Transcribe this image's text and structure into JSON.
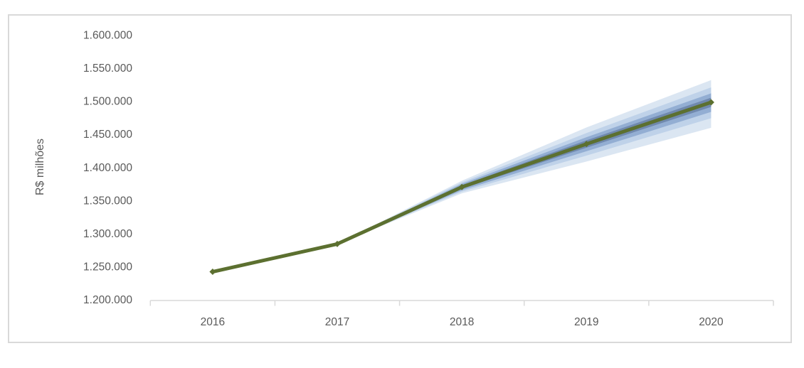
{
  "page": {
    "background_color": "#ffffff",
    "frame_border_color": "#d9d9d9"
  },
  "chart_data": {
    "type": "line",
    "subtype": "fan-projection",
    "title": "",
    "xlabel": "",
    "ylabel": "R$ milhões",
    "categories": [
      "2016",
      "2017",
      "2018",
      "2019",
      "2020"
    ],
    "series": [
      {
        "name": "projecao-central",
        "color": "#5c7030",
        "marker": "diamond",
        "values": [
          1242000,
          1284000,
          1370000,
          1435000,
          1498000
        ]
      }
    ],
    "fan_bands": [
      {
        "name": "band-outer",
        "color": "#dbe6f2",
        "offsets_upper": [
          null,
          0,
          9500,
          25000,
          33500
        ],
        "offsets_lower": [
          null,
          0,
          9500,
          26500,
          38500
        ]
      },
      {
        "name": "band-mid-outer",
        "color": "#bfd2e9",
        "offsets_upper": [
          null,
          0,
          7000,
          16500,
          22500
        ],
        "offsets_lower": [
          null,
          0,
          7000,
          17500,
          24000
        ]
      },
      {
        "name": "band-mid-inner",
        "color": "#93aed3",
        "offsets_upper": [
          null,
          0,
          4800,
          10200,
          13500
        ],
        "offsets_lower": [
          null,
          0,
          4800,
          11000,
          14500
        ]
      },
      {
        "name": "band-inner",
        "color": "#7089ae",
        "offsets_upper": [
          null,
          0,
          2500,
          5600,
          7000
        ],
        "offsets_lower": [
          null,
          0,
          2500,
          5600,
          7000
        ]
      }
    ],
    "ylim": [
      1200000,
      1600000
    ],
    "ytick_step": 50000,
    "ytick_labels": [
      "1.200.000",
      "1.250.000",
      "1.300.000",
      "1.350.000",
      "1.400.000",
      "1.450.000",
      "1.500.000",
      "1.550.000",
      "1.600.000"
    ],
    "grid": false,
    "legend": false,
    "axis_color": "#d9d9d9",
    "tick_text_color": "#595959"
  }
}
